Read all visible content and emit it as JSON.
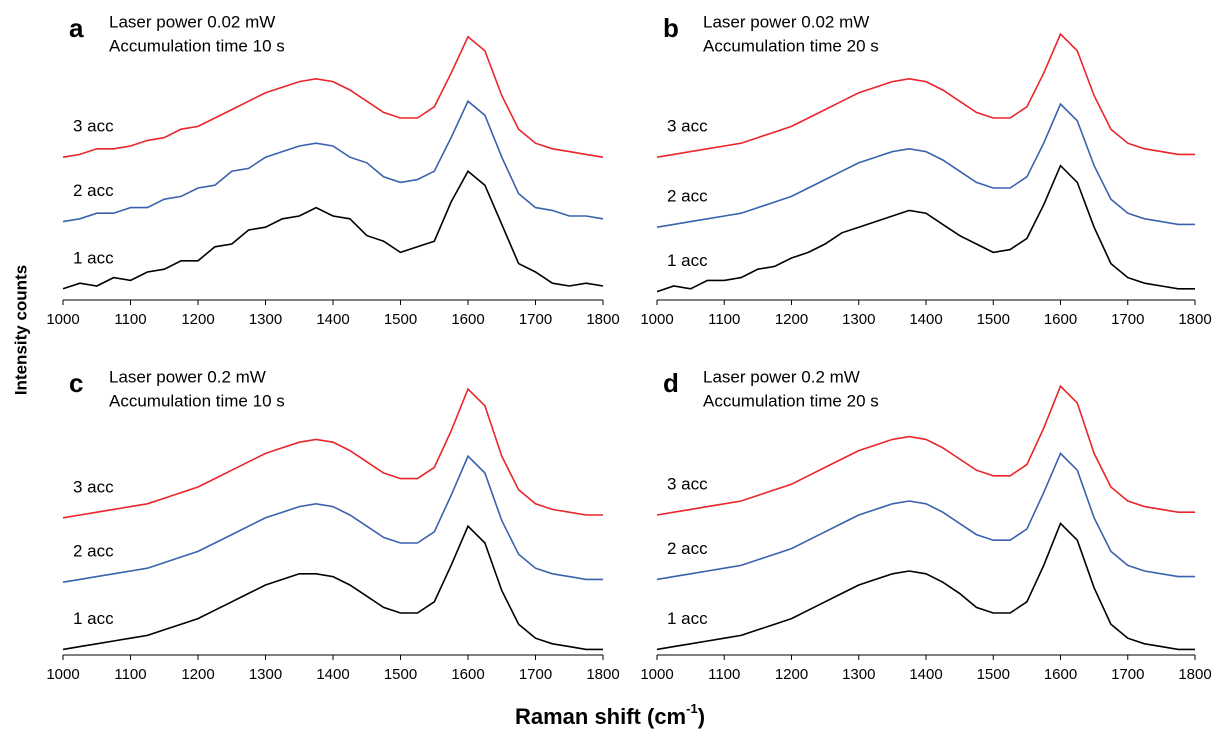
{
  "chart_data": [
    {
      "type": "line",
      "panel": "a",
      "annotations": [
        "Laser power  0.02 mW",
        "Accumulation time 10 s"
      ],
      "x": [
        1000,
        1025,
        1050,
        1075,
        1100,
        1125,
        1150,
        1175,
        1200,
        1225,
        1250,
        1275,
        1300,
        1325,
        1350,
        1375,
        1400,
        1425,
        1450,
        1475,
        1500,
        1525,
        1550,
        1575,
        1600,
        1625,
        1650,
        1675,
        1700,
        1725,
        1750,
        1775,
        1800
      ],
      "xlim": [
        1000,
        1800
      ],
      "xticks": [
        1000,
        1100,
        1200,
        1300,
        1400,
        1500,
        1600,
        1700,
        1800
      ],
      "ylim": [
        0,
        100
      ],
      "series": [
        {
          "name": "1 acc",
          "color": "#000000",
          "values": [
            4,
            6,
            5,
            8,
            7,
            10,
            11,
            14,
            14,
            19,
            20,
            25,
            26,
            29,
            30,
            33,
            30,
            29,
            23,
            21,
            17,
            19,
            21,
            35,
            46,
            41,
            27,
            13,
            10,
            6,
            5,
            6,
            5
          ]
        },
        {
          "name": "2 acc",
          "color": "#3a62ad",
          "values": [
            28,
            29,
            31,
            31,
            33,
            33,
            36,
            37,
            40,
            41,
            46,
            47,
            51,
            53,
            55,
            56,
            55,
            51,
            49,
            44,
            42,
            43,
            46,
            58,
            71,
            66,
            51,
            38,
            33,
            32,
            30,
            30,
            29
          ]
        },
        {
          "name": "3 acc",
          "color": "#e8262b",
          "values": [
            51,
            52,
            54,
            54,
            55,
            57,
            58,
            61,
            62,
            65,
            68,
            71,
            74,
            76,
            78,
            79,
            78,
            75,
            71,
            67,
            65,
            65,
            69,
            81,
            94,
            89,
            73,
            61,
            56,
            54,
            53,
            52,
            51
          ]
        }
      ]
    },
    {
      "type": "line",
      "panel": "b",
      "annotations": [
        "Laser power  0.02 mW",
        "Accumulation time 20 s"
      ],
      "x": [
        1000,
        1025,
        1050,
        1075,
        1100,
        1125,
        1150,
        1175,
        1200,
        1225,
        1250,
        1275,
        1300,
        1325,
        1350,
        1375,
        1400,
        1425,
        1450,
        1475,
        1500,
        1525,
        1550,
        1575,
        1600,
        1625,
        1650,
        1675,
        1700,
        1725,
        1750,
        1775,
        1800
      ],
      "xlim": [
        1000,
        1800
      ],
      "xticks": [
        1000,
        1100,
        1200,
        1300,
        1400,
        1500,
        1600,
        1700,
        1800
      ],
      "ylim": [
        0,
        100
      ],
      "series": [
        {
          "name": "1 acc",
          "color": "#000000",
          "values": [
            3,
            5,
            4,
            7,
            7,
            8,
            11,
            12,
            15,
            17,
            20,
            24,
            26,
            28,
            30,
            32,
            31,
            27,
            23,
            20,
            17,
            18,
            22,
            34,
            48,
            42,
            26,
            13,
            8,
            6,
            5,
            4,
            4
          ]
        },
        {
          "name": "2 acc",
          "color": "#3a62ad",
          "values": [
            26,
            27,
            28,
            29,
            30,
            31,
            33,
            35,
            37,
            40,
            43,
            46,
            49,
            51,
            53,
            54,
            53,
            50,
            46,
            42,
            40,
            40,
            44,
            56,
            70,
            64,
            48,
            36,
            31,
            29,
            28,
            27,
            27
          ]
        },
        {
          "name": "3 acc",
          "color": "#e8262b",
          "values": [
            51,
            52,
            53,
            54,
            55,
            56,
            58,
            60,
            62,
            65,
            68,
            71,
            74,
            76,
            78,
            79,
            78,
            75,
            71,
            67,
            65,
            65,
            69,
            81,
            95,
            89,
            73,
            61,
            56,
            54,
            53,
            52,
            52
          ]
        }
      ]
    },
    {
      "type": "line",
      "panel": "c",
      "annotations": [
        "Laser power  0.2 mW",
        "Accumulation time 10 s"
      ],
      "x": [
        1000,
        1025,
        1050,
        1075,
        1100,
        1125,
        1150,
        1175,
        1200,
        1225,
        1250,
        1275,
        1300,
        1325,
        1350,
        1375,
        1400,
        1425,
        1450,
        1475,
        1500,
        1525,
        1550,
        1575,
        1600,
        1625,
        1650,
        1675,
        1700,
        1725,
        1750,
        1775,
        1800
      ],
      "xlim": [
        1000,
        1800
      ],
      "xticks": [
        1000,
        1100,
        1200,
        1300,
        1400,
        1500,
        1600,
        1700,
        1800
      ],
      "ylim": [
        0,
        100
      ],
      "series": [
        {
          "name": "1 acc",
          "color": "#000000",
          "values": [
            2,
            3,
            4,
            5,
            6,
            7,
            9,
            11,
            13,
            16,
            19,
            22,
            25,
            27,
            29,
            29,
            28,
            25,
            21,
            17,
            15,
            15,
            19,
            32,
            46,
            40,
            23,
            11,
            6,
            4,
            3,
            2,
            2
          ]
        },
        {
          "name": "2 acc",
          "color": "#3a62ad",
          "values": [
            26,
            27,
            28,
            29,
            30,
            31,
            33,
            35,
            37,
            40,
            43,
            46,
            49,
            51,
            53,
            54,
            53,
            50,
            46,
            42,
            40,
            40,
            44,
            57,
            71,
            65,
            48,
            36,
            31,
            29,
            28,
            27,
            27
          ]
        },
        {
          "name": "3 acc",
          "color": "#e8262b",
          "values": [
            49,
            50,
            51,
            52,
            53,
            54,
            56,
            58,
            60,
            63,
            66,
            69,
            72,
            74,
            76,
            77,
            76,
            73,
            69,
            65,
            63,
            63,
            67,
            80,
            95,
            89,
            71,
            59,
            54,
            52,
            51,
            50,
            50
          ]
        }
      ]
    },
    {
      "type": "line",
      "panel": "d",
      "annotations": [
        "Laser power  0.2 mW",
        "Accumulation time  20 s"
      ],
      "x": [
        1000,
        1025,
        1050,
        1075,
        1100,
        1125,
        1150,
        1175,
        1200,
        1225,
        1250,
        1275,
        1300,
        1325,
        1350,
        1375,
        1400,
        1425,
        1450,
        1475,
        1500,
        1525,
        1550,
        1575,
        1600,
        1625,
        1650,
        1675,
        1700,
        1725,
        1750,
        1775,
        1800
      ],
      "xlim": [
        1000,
        1800
      ],
      "xticks": [
        1000,
        1100,
        1200,
        1300,
        1400,
        1500,
        1600,
        1700,
        1800
      ],
      "ylim": [
        0,
        100
      ],
      "series": [
        {
          "name": "1 acc",
          "color": "#000000",
          "values": [
            2,
            3,
            4,
            5,
            6,
            7,
            9,
            11,
            13,
            16,
            19,
            22,
            25,
            27,
            29,
            30,
            29,
            26,
            22,
            17,
            15,
            15,
            19,
            32,
            47,
            41,
            24,
            11,
            6,
            4,
            3,
            2,
            2
          ]
        },
        {
          "name": "2 acc",
          "color": "#3a62ad",
          "values": [
            27,
            28,
            29,
            30,
            31,
            32,
            34,
            36,
            38,
            41,
            44,
            47,
            50,
            52,
            54,
            55,
            54,
            51,
            47,
            43,
            41,
            41,
            45,
            58,
            72,
            66,
            49,
            37,
            32,
            30,
            29,
            28,
            28
          ]
        },
        {
          "name": "3 acc",
          "color": "#e8262b",
          "values": [
            50,
            51,
            52,
            53,
            54,
            55,
            57,
            59,
            61,
            64,
            67,
            70,
            73,
            75,
            77,
            78,
            77,
            74,
            70,
            66,
            64,
            64,
            68,
            81,
            96,
            90,
            72,
            60,
            55,
            53,
            52,
            51,
            51
          ]
        }
      ]
    }
  ],
  "ylabel": "Intensity counts",
  "xlabel": [
    "Raman shift (cm",
    "-1",
    ")"
  ]
}
